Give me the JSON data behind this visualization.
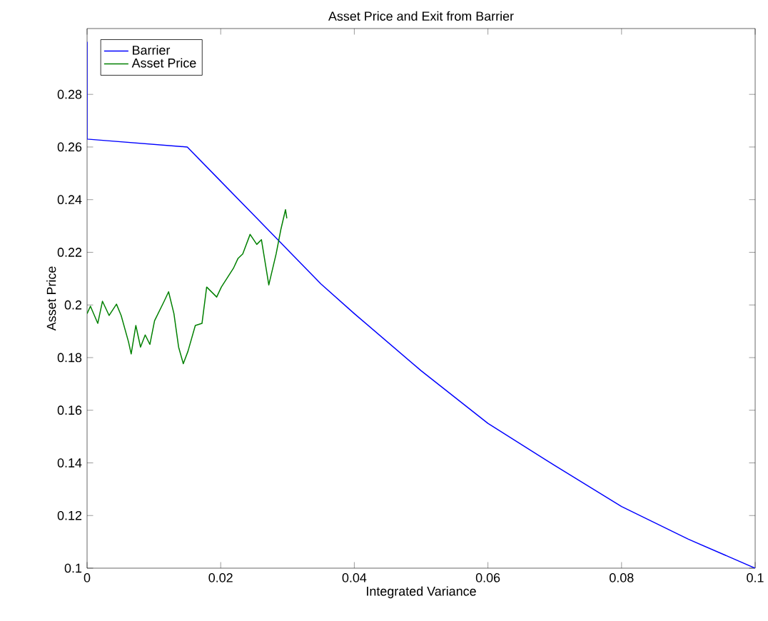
{
  "chart_data": {
    "type": "line",
    "title": "Asset Price and Exit from Barrier",
    "xlabel": "Integrated Variance",
    "ylabel": "Asset Price",
    "xlim": [
      0,
      0.1
    ],
    "ylim": [
      0.1,
      0.305
    ],
    "xticks": [
      0,
      0.02,
      0.04,
      0.06,
      0.08,
      0.1
    ],
    "yticks": [
      0.1,
      0.12,
      0.14,
      0.16,
      0.18,
      0.2,
      0.22,
      0.24,
      0.26,
      0.28
    ],
    "legend": "top left",
    "grid": false,
    "series": [
      {
        "name": "Barrier",
        "color": "#0000ff",
        "x": [
          0,
          0,
          0.015,
          0.02,
          0.025,
          0.03,
          0.035,
          0.04,
          0.05,
          0.06,
          0.07,
          0.08,
          0.09,
          0.1
        ],
        "values": [
          0.3,
          0.263,
          0.26,
          0.247,
          0.234,
          0.221,
          0.208,
          0.1967,
          0.175,
          0.155,
          0.139,
          0.1234,
          0.111,
          0.1
        ]
      },
      {
        "name": "Asset Price",
        "color": "#008000",
        "x": [
          0,
          0.0005,
          0.0016,
          0.0023,
          0.0033,
          0.0044,
          0.0051,
          0.0062,
          0.0066,
          0.0073,
          0.008,
          0.0087,
          0.0094,
          0.0101,
          0.0115,
          0.0122,
          0.013,
          0.0137,
          0.0144,
          0.0151,
          0.0162,
          0.0172,
          0.0179,
          0.0194,
          0.0201,
          0.0219,
          0.0226,
          0.0233,
          0.0244,
          0.0254,
          0.0261,
          0.0272,
          0.0283,
          0.029,
          0.0297,
          0.0299
        ],
        "values": [
          0.1967,
          0.1995,
          0.193,
          0.2014,
          0.196,
          0.2003,
          0.196,
          0.186,
          0.1814,
          0.1922,
          0.184,
          0.1886,
          0.185,
          0.194,
          0.2012,
          0.205,
          0.1967,
          0.184,
          0.1777,
          0.1824,
          0.1922,
          0.193,
          0.2068,
          0.203,
          0.2068,
          0.2139,
          0.2177,
          0.2194,
          0.2268,
          0.223,
          0.2248,
          0.2076,
          0.2194,
          0.2286,
          0.2362,
          0.2329
        ]
      }
    ]
  }
}
